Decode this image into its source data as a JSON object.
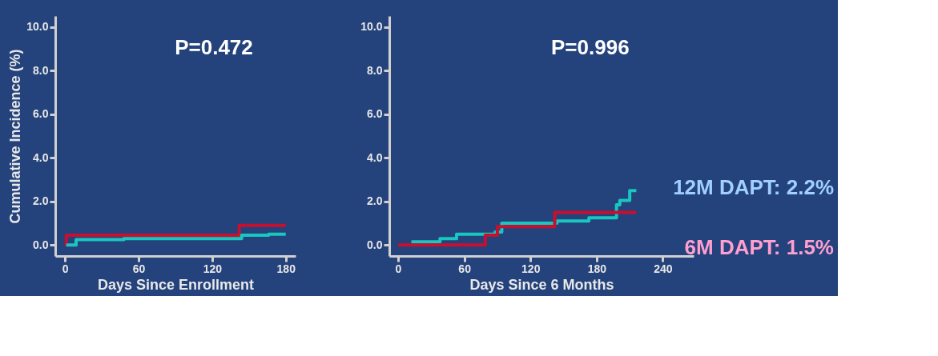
{
  "chart_data": [
    {
      "type": "step",
      "ylabel": "Cumulative Incidence (%)",
      "xlabel": "Days Since Enrollment",
      "annotations": [
        "P=0.472"
      ],
      "xlim": [
        -8,
        188
      ],
      "ylim": [
        -0.5,
        10.5
      ],
      "xticks": [
        0,
        60,
        120,
        180
      ],
      "yticks": [
        {
          "value": 0,
          "label": "0.0"
        },
        {
          "value": 2,
          "label": "2.0"
        },
        {
          "value": 4,
          "label": "4.0"
        },
        {
          "value": 6,
          "label": "6.0"
        },
        {
          "value": 8,
          "label": "8.0"
        },
        {
          "value": 10,
          "label": "10.0"
        }
      ],
      "grid": false,
      "legend": false,
      "series": [
        {
          "color": "#c8102e",
          "x": [
            0,
            1,
            142,
            180
          ],
          "values": [
            0.0,
            0.45,
            0.9,
            0.9
          ]
        },
        {
          "color": "#19c6c0",
          "x": [
            1,
            9,
            48,
            144,
            166,
            180
          ],
          "values": [
            0.0,
            0.25,
            0.3,
            0.45,
            0.5,
            0.5
          ]
        }
      ]
    },
    {
      "type": "step",
      "xlabel": "Days Since 6 Months",
      "annotations": [
        "P=0.996"
      ],
      "xlim": [
        -8,
        268
      ],
      "ylim": [
        -0.5,
        10.5
      ],
      "xticks": [
        0,
        60,
        120,
        180,
        240
      ],
      "yticks": [
        {
          "value": 0,
          "label": "0.0"
        },
        {
          "value": 2,
          "label": "2.0"
        },
        {
          "value": 4,
          "label": "4.0"
        },
        {
          "value": 6,
          "label": "6.0"
        },
        {
          "value": 8,
          "label": "8.0"
        },
        {
          "value": 10,
          "label": "10.0"
        }
      ],
      "grid": false,
      "legend": false,
      "series": [
        {
          "name": "12M DAPT: 2.2%",
          "color": "#19c6c0",
          "x": [
            12,
            38,
            53,
            88,
            94,
            144,
            173,
            198,
            201,
            210,
            216
          ],
          "values": [
            0.15,
            0.3,
            0.5,
            0.6,
            1.0,
            1.1,
            1.25,
            1.85,
            2.05,
            2.5,
            2.5
          ]
        },
        {
          "name": "6M DAPT: 1.5%",
          "color": "#c8102e",
          "x": [
            0,
            79,
            90,
            142,
            216
          ],
          "values": [
            0.0,
            0.45,
            0.85,
            1.5,
            1.5
          ]
        }
      ]
    }
  ]
}
